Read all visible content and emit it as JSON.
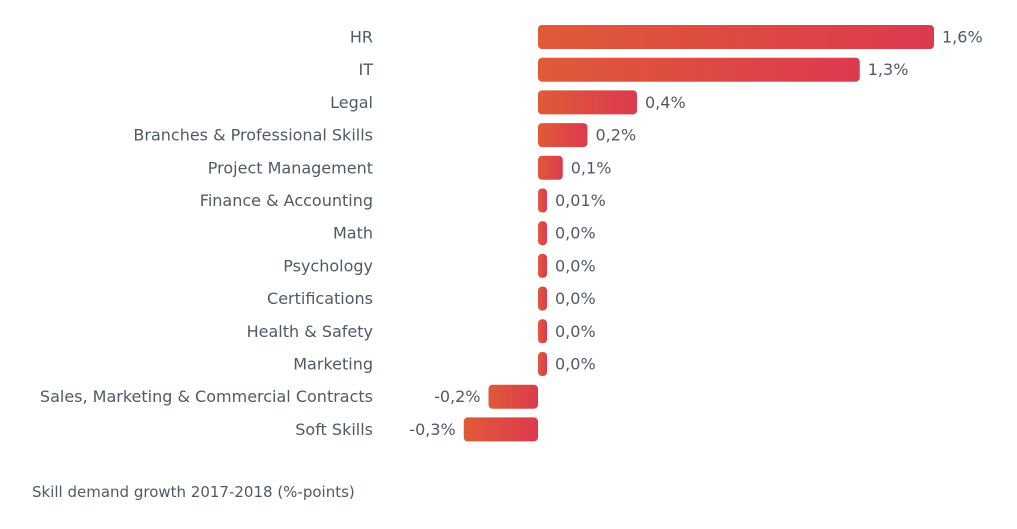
{
  "chart_data": {
    "type": "bar",
    "orientation": "horizontal",
    "categories": [
      "HR",
      "IT",
      "Legal",
      "Branches & Professional Skills",
      "Project Management",
      "Finance & Accounting",
      "Math",
      "Psychology",
      "Certifications",
      "Health & Safety",
      "Marketing",
      "Sales, Marketing & Commercial Contracts",
      "Soft Skills"
    ],
    "values": [
      1.6,
      1.3,
      0.4,
      0.2,
      0.1,
      0.01,
      0.0,
      0.0,
      0.0,
      0.0,
      0.0,
      -0.2,
      -0.3
    ],
    "value_labels": [
      "1,6%",
      "1,3%",
      "0,4%",
      "0,2%",
      "0,1%",
      "0,01%",
      "0,0%",
      "0,0%",
      "0,0%",
      "0,0%",
      "0,0%",
      "-0,2%",
      "-0,3%"
    ],
    "caption": "Skill demand growth 2017-2018 (%-points)",
    "xlim": [
      -0.3,
      1.6
    ],
    "grid": false,
    "legend": "none",
    "colors": {
      "bar_start": "#e05a38",
      "bar_end": "#dc3a4e",
      "text": "#505a66"
    }
  }
}
